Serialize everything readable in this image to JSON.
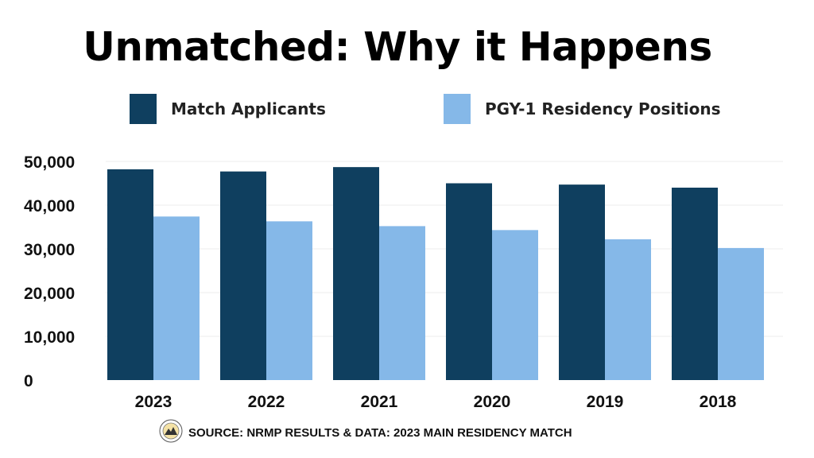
{
  "title": "Unmatched: Why it Happens",
  "legend": [
    {
      "label": "Match Applicants",
      "color": "#0f3f5f"
    },
    {
      "label": "PGY-1 Residency Positions",
      "color": "#85b8e8"
    }
  ],
  "chart_data": {
    "type": "bar",
    "title": "Unmatched: Why it Happens",
    "categories": [
      "2023",
      "2022",
      "2021",
      "2020",
      "2019",
      "2018"
    ],
    "series": [
      {
        "name": "Match Applicants",
        "values": [
          48200,
          47700,
          48700,
          45000,
          44700,
          44000
        ],
        "color": "#0f3f5f"
      },
      {
        "name": "PGY-1 Residency Positions",
        "values": [
          37400,
          36300,
          35200,
          34300,
          32200,
          30200
        ],
        "color": "#85b8e8"
      }
    ],
    "ylim": [
      0,
      50000
    ],
    "yticks": [
      0,
      10000,
      20000,
      30000,
      40000,
      50000
    ],
    "ytick_labels": [
      "0",
      "10,000",
      "20,000",
      "30,000",
      "40,000",
      "50,000"
    ],
    "grid": true,
    "legend_position": "top"
  },
  "source": "SOURCE: NRMP RESULTS & DATA: 2023 MAIN RESIDENCY MATCH"
}
